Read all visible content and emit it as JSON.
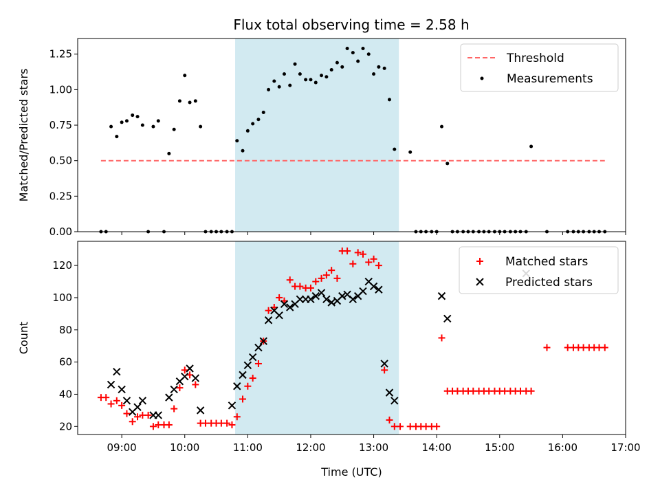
{
  "title": "Flux total observing time = 2.58 h",
  "colors": {
    "shade": "#add8e6",
    "threshold": "#ff6666",
    "measurements": "#000000",
    "matched": "#ff0000",
    "predicted": "#000000"
  },
  "chart_data": [
    {
      "type": "scatter",
      "ylabel": "Matched/Predicted stars",
      "xlim": [
        8.3,
        17.0
      ],
      "ylim": [
        0,
        1.36
      ],
      "yticks": [
        0,
        0.25,
        0.5,
        0.75,
        1.0,
        1.25
      ],
      "ytick_labels": [
        "0.00",
        "0.25",
        "0.50",
        "0.75",
        "1.00",
        "1.25"
      ],
      "shaded_interval": [
        10.8,
        13.4
      ],
      "threshold": {
        "name": "Threshold",
        "value": 0.5,
        "x_range": [
          8.67,
          16.67
        ]
      },
      "legend_position": "top-right",
      "series": [
        {
          "name": "Measurements",
          "x": [
            8.67,
            8.75,
            8.83,
            8.92,
            9.0,
            9.08,
            9.17,
            9.25,
            9.33,
            9.42,
            9.5,
            9.58,
            9.67,
            9.75,
            9.83,
            9.92,
            10.0,
            10.08,
            10.17,
            10.25,
            10.33,
            10.42,
            10.5,
            10.58,
            10.67,
            10.75,
            10.83,
            10.92,
            11.0,
            11.08,
            11.17,
            11.25,
            11.33,
            11.42,
            11.5,
            11.58,
            11.67,
            11.75,
            11.83,
            11.92,
            12.0,
            12.08,
            12.17,
            12.25,
            12.33,
            12.42,
            12.5,
            12.58,
            12.67,
            12.75,
            12.83,
            12.92,
            13.0,
            13.08,
            13.17,
            13.25,
            13.33,
            13.58,
            13.67,
            13.75,
            13.83,
            13.92,
            14.0,
            14.08,
            14.17,
            14.25,
            14.33,
            14.42,
            14.5,
            14.58,
            14.67,
            14.75,
            14.83,
            14.92,
            15.0,
            15.08,
            15.17,
            15.25,
            15.33,
            15.42,
            15.5,
            15.75,
            16.08,
            16.17,
            16.25,
            16.33,
            16.42,
            16.5,
            16.58,
            16.67
          ],
          "y": [
            0,
            0,
            0.74,
            0.67,
            0.77,
            0.78,
            0.82,
            0.81,
            0.75,
            0,
            0.74,
            0.78,
            0,
            0.55,
            0.72,
            0.92,
            1.1,
            0.91,
            0.92,
            0.74,
            0,
            0,
            0,
            0,
            0,
            0,
            0.64,
            0.57,
            0.71,
            0.76,
            0.79,
            0.84,
            1.0,
            1.06,
            1.02,
            1.11,
            1.03,
            1.18,
            1.11,
            1.07,
            1.07,
            1.05,
            1.1,
            1.09,
            1.14,
            1.19,
            1.16,
            1.29,
            1.26,
            1.2,
            1.29,
            1.25,
            1.11,
            1.16,
            1.15,
            0.93,
            0.58,
            0.56,
            0,
            0,
            0,
            0,
            0,
            0.74,
            0.48,
            0,
            0,
            0,
            0,
            0,
            0,
            0,
            0,
            0,
            0,
            0,
            0,
            0,
            0,
            0,
            0.6,
            0,
            0,
            0,
            0,
            0,
            0,
            0,
            0,
            0
          ]
        }
      ]
    },
    {
      "type": "scatter",
      "xlabel": "Time (UTC)",
      "ylabel": "Count",
      "xlim": [
        8.3,
        17.0
      ],
      "ylim": [
        15,
        135
      ],
      "yticks": [
        20,
        40,
        60,
        80,
        100,
        120
      ],
      "ytick_labels": [
        "20",
        "40",
        "60",
        "80",
        "100",
        "120"
      ],
      "xticks": [
        9,
        10,
        11,
        12,
        13,
        14,
        15,
        16,
        17
      ],
      "xtick_labels": [
        "09:00",
        "10:00",
        "11:00",
        "12:00",
        "13:00",
        "14:00",
        "15:00",
        "16:00",
        "17:00"
      ],
      "shaded_interval": [
        10.8,
        13.4
      ],
      "legend_position": "top-right",
      "series": [
        {
          "name": "Matched stars",
          "x": [
            8.67,
            8.75,
            8.83,
            8.92,
            9.0,
            9.08,
            9.17,
            9.25,
            9.33,
            9.42,
            9.5,
            9.58,
            9.67,
            9.75,
            9.83,
            9.92,
            10.0,
            10.08,
            10.17,
            10.25,
            10.33,
            10.42,
            10.5,
            10.58,
            10.67,
            10.75,
            10.83,
            10.92,
            11.0,
            11.08,
            11.17,
            11.25,
            11.33,
            11.42,
            11.5,
            11.58,
            11.67,
            11.75,
            11.83,
            11.92,
            12.0,
            12.08,
            12.17,
            12.25,
            12.33,
            12.42,
            12.5,
            12.58,
            12.67,
            12.75,
            12.83,
            12.92,
            13.0,
            13.08,
            13.17,
            13.25,
            13.33,
            13.42,
            13.58,
            13.67,
            13.75,
            13.83,
            13.92,
            14.0,
            14.08,
            14.17,
            14.25,
            14.33,
            14.42,
            14.5,
            14.58,
            14.67,
            14.75,
            14.83,
            14.92,
            15.0,
            15.08,
            15.17,
            15.25,
            15.33,
            15.42,
            15.5,
            15.75,
            16.08,
            16.17,
            16.25,
            16.33,
            16.42,
            16.5,
            16.58,
            16.67
          ],
          "y": [
            38,
            38,
            34,
            36,
            33,
            28,
            23,
            26,
            27,
            27,
            20,
            21,
            21,
            21,
            31,
            44,
            55,
            52,
            46,
            22,
            22,
            22,
            22,
            22,
            22,
            21,
            26,
            37,
            45,
            50,
            59,
            73,
            92,
            94,
            100,
            98,
            111,
            107,
            107,
            106,
            106,
            110,
            112,
            114,
            117,
            112,
            129,
            129,
            121,
            128,
            127,
            122,
            124,
            120,
            55,
            24,
            20,
            20,
            20,
            20,
            20,
            20,
            20,
            20,
            75,
            42,
            42,
            42,
            42,
            42,
            42,
            42,
            42,
            42,
            42,
            42,
            42,
            42,
            42,
            42,
            42,
            42,
            69,
            69,
            69,
            69,
            69,
            69,
            69,
            69,
            69
          ]
        },
        {
          "name": "Predicted stars",
          "x": [
            8.83,
            8.92,
            9.0,
            9.08,
            9.17,
            9.25,
            9.33,
            9.5,
            9.58,
            9.75,
            9.83,
            9.92,
            10.0,
            10.08,
            10.17,
            10.25,
            10.75,
            10.83,
            10.92,
            11.0,
            11.08,
            11.17,
            11.25,
            11.33,
            11.42,
            11.5,
            11.58,
            11.67,
            11.75,
            11.83,
            11.92,
            12.0,
            12.08,
            12.17,
            12.25,
            12.33,
            12.42,
            12.5,
            12.58,
            12.67,
            12.75,
            12.83,
            12.92,
            13.0,
            13.08,
            13.17,
            13.25,
            13.33,
            14.08,
            14.17,
            15.42
          ],
          "y": [
            46,
            54,
            43,
            36,
            29,
            32,
            36,
            27,
            27,
            38,
            43,
            48,
            51,
            56,
            50,
            30,
            33,
            45,
            52,
            58,
            63,
            69,
            73,
            86,
            92,
            89,
            96,
            94,
            96,
            99,
            99,
            99,
            101,
            103,
            99,
            97,
            98,
            101,
            102,
            99,
            101,
            104,
            110,
            107,
            105,
            59,
            41,
            36,
            101,
            87,
            115
          ]
        }
      ]
    }
  ]
}
